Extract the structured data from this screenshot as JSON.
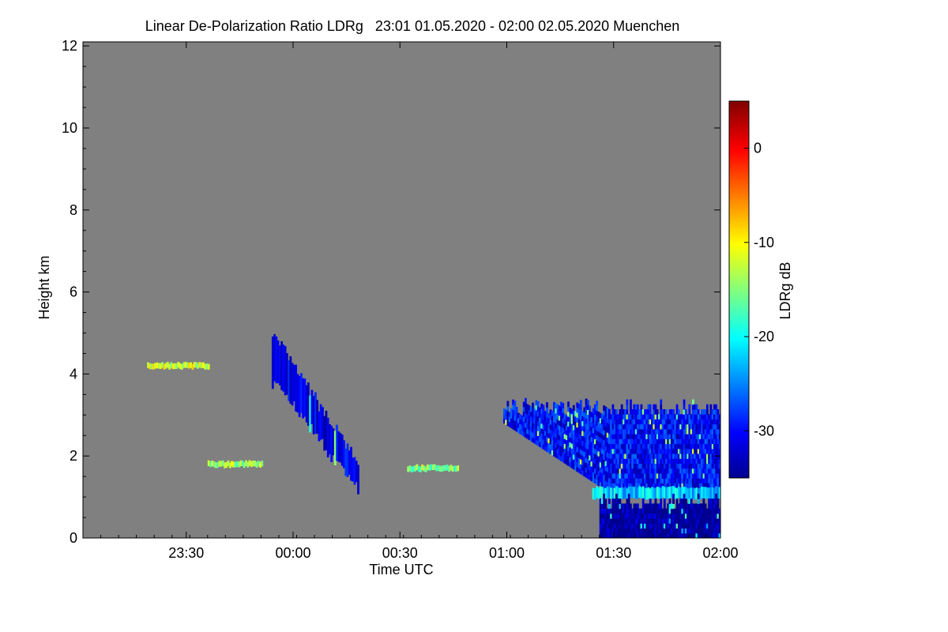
{
  "chart_data": {
    "type": "heatmap",
    "title": "Linear De-Polarization Ratio LDRg   23:01 01.05.2020 - 02:00 02.05.2020 Muenchen",
    "xlabel": "Time UTC",
    "ylabel": "Height km",
    "colorbar_label": "LDRg dB",
    "x_range": [
      "23:01",
      "02:00"
    ],
    "x_tick_labels": [
      "23:30",
      "00:00",
      "00:30",
      "01:00",
      "01:30",
      "02:00"
    ],
    "x_tick_values_min": [
      29,
      59,
      89,
      119,
      149,
      179
    ],
    "x_range_min": [
      0,
      179
    ],
    "ylim": [
      0,
      12.1
    ],
    "y_ticks": [
      0,
      2,
      4,
      6,
      8,
      10,
      12
    ],
    "colorbar_range": [
      -35,
      5
    ],
    "colorbar_ticks": [
      0,
      -10,
      -20,
      -30
    ],
    "background_color": "#808080",
    "colormap": [
      "#00008f",
      "#0000ff",
      "#00ffff",
      "#ffff00",
      "#ff0000",
      "#800000"
    ],
    "features": [
      {
        "name": "falling ice streak",
        "t_start_min": 53,
        "t_end_min": 77,
        "h_top_km": 4.4,
        "h_bottom_km": 1.5,
        "ldr_db": -31
      },
      {
        "name": "mid-level cloud base layer",
        "t_start_min": 118,
        "t_end_min": 179,
        "h_top_km": 3.3,
        "h_bottom_km": 1.1,
        "ldr_db": -30
      },
      {
        "name": "melting layer",
        "t_start_min": 143,
        "t_end_min": 179,
        "height_km": 1.1,
        "ldr_db": -22
      },
      {
        "name": "rain below melting layer",
        "t_start_min": 145,
        "t_end_min": 179,
        "h_top_km": 1.0,
        "h_bottom_km": 0.0,
        "ldr_db": -35
      },
      {
        "name": "thin layer near 1.8 km",
        "t_start_min": 35,
        "t_end_min": 50,
        "height_km": 1.8,
        "ldr_db": -14
      },
      {
        "name": "thin layer near 1.7 km",
        "t_start_min": 91,
        "t_end_min": 105,
        "height_km": 1.7,
        "ldr_db": -15
      },
      {
        "name": "scattered returns near 4 km",
        "t_start_min": 18,
        "t_end_min": 35,
        "height_km": 4.2,
        "ldr_db": -12
      }
    ]
  }
}
